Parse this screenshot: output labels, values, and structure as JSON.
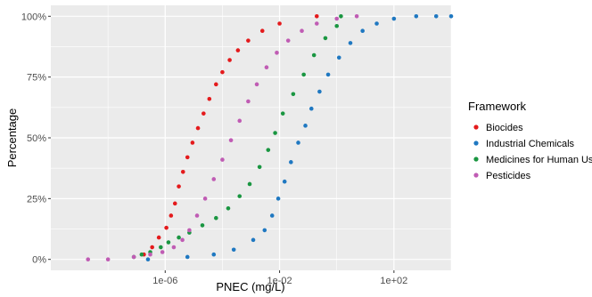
{
  "chart_data": {
    "type": "scatter",
    "xlabel": "PNEC (mg/L)",
    "ylabel": "Percentage",
    "x_scale": "log10",
    "xlim": [
      1e-10,
      10000.0
    ],
    "ylim": [
      -0.045,
      1.045
    ],
    "x_ticks": [
      {
        "value": 1e-06,
        "label": "1e-06"
      },
      {
        "value": 0.01,
        "label": "1e-02"
      },
      {
        "value": 100.0,
        "label": "1e+02"
      }
    ],
    "y_ticks": [
      {
        "value": 0,
        "label": "0%"
      },
      {
        "value": 0.25,
        "label": "25%"
      },
      {
        "value": 0.5,
        "label": "50%"
      },
      {
        "value": 0.75,
        "label": "75%"
      },
      {
        "value": 1,
        "label": "100%"
      }
    ],
    "grid": true,
    "panel_background": "#ebebeb",
    "legend": {
      "title": "Framework",
      "position": "right"
    },
    "series": [
      {
        "name": "Biocides",
        "color": "#e41a1c",
        "points": [
          {
            "x": 1.8e-07,
            "y": 0.02
          },
          {
            "x": 3.5e-07,
            "y": 0.05
          },
          {
            "x": 6e-07,
            "y": 0.09
          },
          {
            "x": 1.1e-06,
            "y": 0.13
          },
          {
            "x": 1.6e-06,
            "y": 0.18
          },
          {
            "x": 2.2e-06,
            "y": 0.23
          },
          {
            "x": 3e-06,
            "y": 0.3
          },
          {
            "x": 4.2e-06,
            "y": 0.36
          },
          {
            "x": 6e-06,
            "y": 0.42
          },
          {
            "x": 9e-06,
            "y": 0.48
          },
          {
            "x": 1.4e-05,
            "y": 0.54
          },
          {
            "x": 2.2e-05,
            "y": 0.6
          },
          {
            "x": 3.5e-05,
            "y": 0.66
          },
          {
            "x": 6e-05,
            "y": 0.72
          },
          {
            "x": 0.0001,
            "y": 0.77
          },
          {
            "x": 0.00018,
            "y": 0.82
          },
          {
            "x": 0.00035,
            "y": 0.86
          },
          {
            "x": 0.0008,
            "y": 0.9
          },
          {
            "x": 0.0025,
            "y": 0.94
          },
          {
            "x": 0.01,
            "y": 0.97
          },
          {
            "x": 0.2,
            "y": 1.0
          }
        ]
      },
      {
        "name": "Industrial Chemicals",
        "color": "#1f78c1",
        "points": [
          {
            "x": 2.5e-07,
            "y": 0.0
          },
          {
            "x": 6e-06,
            "y": 0.01
          },
          {
            "x": 5e-05,
            "y": 0.02
          },
          {
            "x": 0.00025,
            "y": 0.04
          },
          {
            "x": 0.0012,
            "y": 0.08
          },
          {
            "x": 0.003,
            "y": 0.12
          },
          {
            "x": 0.0055,
            "y": 0.18
          },
          {
            "x": 0.009,
            "y": 0.25
          },
          {
            "x": 0.015,
            "y": 0.32
          },
          {
            "x": 0.025,
            "y": 0.4
          },
          {
            "x": 0.045,
            "y": 0.48
          },
          {
            "x": 0.08,
            "y": 0.55
          },
          {
            "x": 0.13,
            "y": 0.62
          },
          {
            "x": 0.25,
            "y": 0.69
          },
          {
            "x": 0.5,
            "y": 0.76
          },
          {
            "x": 1.2,
            "y": 0.83
          },
          {
            "x": 3,
            "y": 0.89
          },
          {
            "x": 8,
            "y": 0.94
          },
          {
            "x": 25,
            "y": 0.97
          },
          {
            "x": 100,
            "y": 0.99
          },
          {
            "x": 600,
            "y": 1.0
          },
          {
            "x": 3000,
            "y": 1.0
          },
          {
            "x": 10000.0,
            "y": 1.0
          }
        ]
      },
      {
        "name": "Medicines for Human Use",
        "color": "#1a9641",
        "points": [
          {
            "x": 8e-08,
            "y": 0.01
          },
          {
            "x": 1.5e-07,
            "y": 0.02
          },
          {
            "x": 3e-07,
            "y": 0.03
          },
          {
            "x": 7e-07,
            "y": 0.05
          },
          {
            "x": 1.3e-06,
            "y": 0.07
          },
          {
            "x": 3e-06,
            "y": 0.09
          },
          {
            "x": 7e-06,
            "y": 0.11
          },
          {
            "x": 2e-05,
            "y": 0.14
          },
          {
            "x": 6e-05,
            "y": 0.17
          },
          {
            "x": 0.00016,
            "y": 0.21
          },
          {
            "x": 0.0004,
            "y": 0.26
          },
          {
            "x": 0.0009,
            "y": 0.31
          },
          {
            "x": 0.002,
            "y": 0.38
          },
          {
            "x": 0.004,
            "y": 0.45
          },
          {
            "x": 0.007,
            "y": 0.52
          },
          {
            "x": 0.013,
            "y": 0.6
          },
          {
            "x": 0.03,
            "y": 0.68
          },
          {
            "x": 0.07,
            "y": 0.76
          },
          {
            "x": 0.16,
            "y": 0.84
          },
          {
            "x": 0.4,
            "y": 0.91
          },
          {
            "x": 1,
            "y": 0.96
          },
          {
            "x": 1.4,
            "y": 1.0
          }
        ]
      },
      {
        "name": "Pesticides",
        "color": "#c05cb4",
        "points": [
          {
            "x": 2e-09,
            "y": 0.0
          },
          {
            "x": 1e-08,
            "y": 0.0
          },
          {
            "x": 8e-08,
            "y": 0.01
          },
          {
            "x": 3e-07,
            "y": 0.02
          },
          {
            "x": 8e-07,
            "y": 0.03
          },
          {
            "x": 2e-06,
            "y": 0.05
          },
          {
            "x": 4e-06,
            "y": 0.08
          },
          {
            "x": 7e-06,
            "y": 0.12
          },
          {
            "x": 1.3e-05,
            "y": 0.18
          },
          {
            "x": 2.5e-05,
            "y": 0.25
          },
          {
            "x": 5e-05,
            "y": 0.33
          },
          {
            "x": 0.0001,
            "y": 0.41
          },
          {
            "x": 0.0002,
            "y": 0.49
          },
          {
            "x": 0.0004,
            "y": 0.57
          },
          {
            "x": 0.0008,
            "y": 0.65
          },
          {
            "x": 0.0016,
            "y": 0.72
          },
          {
            "x": 0.0035,
            "y": 0.79
          },
          {
            "x": 0.008,
            "y": 0.85
          },
          {
            "x": 0.02,
            "y": 0.9
          },
          {
            "x": 0.06,
            "y": 0.94
          },
          {
            "x": 0.2,
            "y": 0.97
          },
          {
            "x": 1,
            "y": 0.99
          },
          {
            "x": 5,
            "y": 1.0
          }
        ]
      }
    ]
  }
}
